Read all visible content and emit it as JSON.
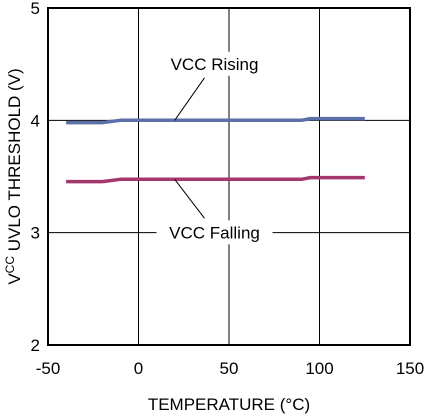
{
  "chart_data": {
    "type": "line",
    "title": "",
    "xlabel": "TEMPERATURE (°C)",
    "ylabel": "VCC UVLO THRESHOLD (V)",
    "ylabel_prefix": "V",
    "ylabel_sub": "CC",
    "ylabel_rest": " UVLO THRESHOLD (V)",
    "xlim": [
      -50,
      150
    ],
    "ylim": [
      2,
      5
    ],
    "xticks": [
      -50,
      0,
      50,
      100,
      150
    ],
    "yticks": [
      2,
      3,
      4,
      5
    ],
    "xtick_labels": [
      "-50",
      "0",
      "50",
      "100",
      "150"
    ],
    "ytick_labels": [
      "2",
      "3",
      "4",
      "5"
    ],
    "grid": true,
    "series": [
      {
        "name": "VCC Rising",
        "color": "#5b6fa8",
        "x": [
          -40,
          -20,
          -10,
          0,
          25,
          50,
          75,
          90,
          95,
          125
        ],
        "y": [
          3.98,
          3.98,
          4.0,
          4.0,
          4.0,
          4.0,
          4.0,
          4.0,
          4.015,
          4.015
        ]
      },
      {
        "name": "VCC Falling",
        "color": "#a4386e",
        "x": [
          -40,
          -20,
          -10,
          0,
          25,
          50,
          75,
          90,
          95,
          125
        ],
        "y": [
          3.455,
          3.455,
          3.475,
          3.475,
          3.475,
          3.475,
          3.475,
          3.475,
          3.49,
          3.49
        ]
      }
    ],
    "annotations": [
      {
        "label": "VCC Rising",
        "text_x": 42,
        "text_y": 4.45,
        "point_x": 20,
        "point_y": 4.0
      },
      {
        "label": "VCC Falling",
        "text_x": 42,
        "text_y": 2.95,
        "point_x": 20,
        "point_y": 3.475
      }
    ]
  }
}
